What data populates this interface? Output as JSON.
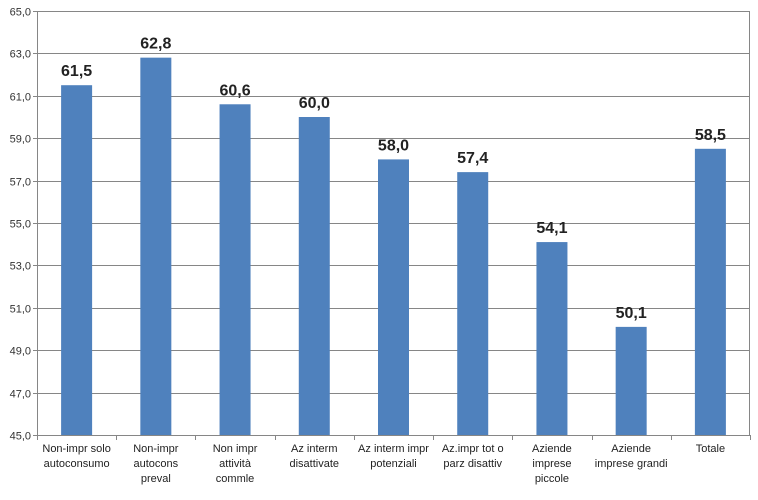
{
  "chart_data": {
    "type": "bar",
    "categories": [
      [
        "Non-impr solo",
        "autoconsumo"
      ],
      [
        "Non-impr",
        "autocons",
        "preval"
      ],
      [
        "Non impr",
        "attività",
        "commle"
      ],
      [
        "Az interm",
        "disattivate"
      ],
      [
        "Az interm impr",
        "potenziali"
      ],
      [
        "Az.impr tot o",
        "parz disattiv"
      ],
      [
        "Aziende",
        "imprese",
        "piccole"
      ],
      [
        "Aziende",
        "imprese grandi"
      ],
      [
        "Totale"
      ]
    ],
    "values": [
      61.5,
      62.8,
      60.6,
      60.0,
      58.0,
      57.4,
      54.1,
      50.1,
      58.5
    ],
    "data_labels": [
      "61,5",
      "62,8",
      "60,6",
      "60,0",
      "58,0",
      "57,4",
      "54,1",
      "50,1",
      "58,5"
    ],
    "ylim": [
      45,
      65
    ],
    "yticks": [
      "45,0",
      "47,0",
      "49,0",
      "51,0",
      "53,0",
      "55,0",
      "57,0",
      "59,0",
      "61,0",
      "63,0",
      "65,0"
    ],
    "grid": true,
    "legend": "none",
    "bar_color": "#4f81bd",
    "grid_color": "#868686",
    "title": "",
    "xlabel": "",
    "ylabel": ""
  }
}
